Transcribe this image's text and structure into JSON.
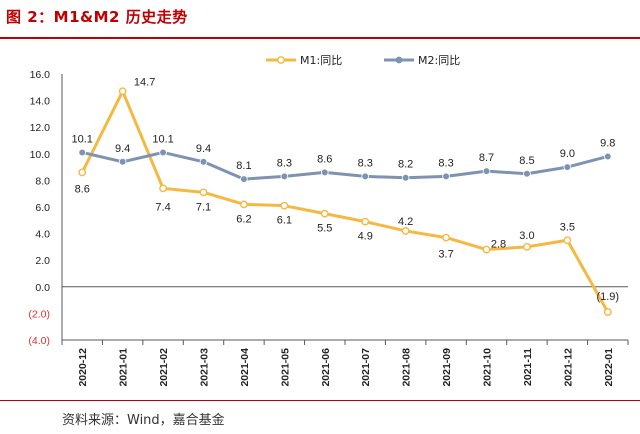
{
  "figure": {
    "title": "图 2：M1&M2 历史走势",
    "source": "资料来源：Wind，嘉合基金"
  },
  "colors": {
    "accent": "#c00000",
    "m1": "#f5b841",
    "m2": "#7d93b2",
    "negative": "#e03030"
  },
  "chart_data": {
    "type": "line",
    "title": "M1&M2 历史走势",
    "xlabel": "",
    "ylabel": "",
    "ylim": [
      -4.0,
      16.0
    ],
    "yticks": [
      16.0,
      14.0,
      12.0,
      10.0,
      8.0,
      6.0,
      4.0,
      2.0,
      0.0,
      -2.0,
      -4.0
    ],
    "ytick_labels": [
      "16.0",
      "14.0",
      "12.0",
      "10.0",
      "8.0",
      "6.0",
      "4.0",
      "2.0",
      "0.0",
      "(2.0)",
      "(4.0)"
    ],
    "categories": [
      "2020-12",
      "2021-01",
      "2021-02",
      "2021-03",
      "2021-04",
      "2021-05",
      "2021-06",
      "2021-07",
      "2021-08",
      "2021-09",
      "2021-10",
      "2021-11",
      "2021-12",
      "2022-01"
    ],
    "legend_position": "top",
    "series": [
      {
        "name": "M1:同比",
        "values": [
          8.6,
          14.7,
          7.4,
          7.1,
          6.2,
          6.1,
          5.5,
          4.9,
          4.2,
          3.7,
          2.8,
          3.0,
          3.5,
          -1.9
        ],
        "labels": [
          "8.6",
          "14.7",
          "7.4",
          "7.1",
          "6.2",
          "6.1",
          "5.5",
          "4.9",
          "4.2",
          "3.7",
          "2.8",
          "3.0",
          "3.5",
          "(1.9)"
        ]
      },
      {
        "name": "M2:同比",
        "values": [
          10.1,
          9.4,
          10.1,
          9.4,
          8.1,
          8.3,
          8.6,
          8.3,
          8.2,
          8.3,
          8.7,
          8.5,
          9.0,
          9.8
        ],
        "labels": [
          "10.1",
          "9.4",
          "10.1",
          "9.4",
          "8.1",
          "8.3",
          "8.6",
          "8.3",
          "8.2",
          "8.3",
          "8.7",
          "8.5",
          "9.0",
          "9.8"
        ]
      }
    ]
  }
}
